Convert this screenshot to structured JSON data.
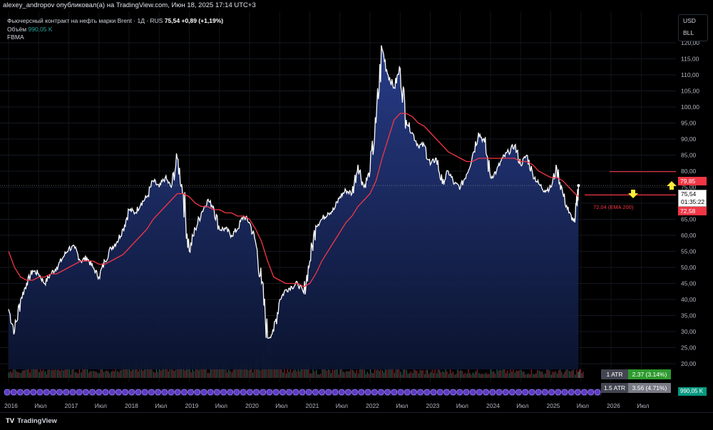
{
  "header": {
    "publish_line": "alexey_andropov опубликовал(а) на TradingView.com, Июн 18, 2025 17:14 UTC+3"
  },
  "legend": {
    "title": "Фьючерсный контракт на нефть марки Brent · 1Д · RUS",
    "price": "75,54",
    "change": "+0,89 (+1,19%)",
    "volume_label": "Объём",
    "volume_value": "990,05 K",
    "indicator": "FBMA"
  },
  "units": {
    "currency": "USD",
    "unit": "BLL"
  },
  "price_tags": {
    "upper_red": "79,85",
    "last_price": "75,54",
    "countdown": "01:35:22",
    "lower_red": "72,58",
    "volume": "990,05 K",
    "ema_label": "72,04 (EMA 200)"
  },
  "atr": [
    {
      "label": "1 ATR",
      "value": "2.37 (3.14%)"
    },
    {
      "label": "1.5 ATR",
      "value": "3.56 (4.71%)"
    }
  ],
  "footer": {
    "brand": "TradingView"
  },
  "colors": {
    "price_line": "#ffffff",
    "area_top": "#2a3f8f",
    "area_bottom": "#0b1430",
    "ema": "#f23645",
    "arrow": "#ffeb3b"
  },
  "chart_data": {
    "type": "area",
    "title": "Фьючерсный контракт на нефть марки Brent · 1Д · RUS",
    "xlabel": "",
    "ylabel": "",
    "ylim": [
      20,
      125
    ],
    "y_ticks": [
      "20,00",
      "25,00",
      "30,00",
      "35,00",
      "40,00",
      "45,00",
      "50,00",
      "55,00",
      "60,00",
      "65,00",
      "70,00",
      "75,00",
      "80,00",
      "85,00",
      "90,00",
      "95,00",
      "100,00",
      "105,00",
      "110,00",
      "115,00",
      "120,00"
    ],
    "x_ticks": [
      "2016",
      "Июл",
      "2017",
      "Июл",
      "2018",
      "Июл",
      "2019",
      "Июл",
      "2020",
      "Июл",
      "2021",
      "Июл",
      "2022",
      "Июл",
      "2023",
      "Июл",
      "2024",
      "Июл",
      "2025",
      "Июл",
      "2026",
      "Июл"
    ],
    "x": [
      2016.0,
      2016.1,
      2016.2,
      2016.3,
      2016.4,
      2016.5,
      2016.6,
      2016.7,
      2016.8,
      2016.9,
      2017.0,
      2017.1,
      2017.2,
      2017.3,
      2017.4,
      2017.5,
      2017.6,
      2017.7,
      2017.8,
      2017.9,
      2018.0,
      2018.1,
      2018.2,
      2018.3,
      2018.4,
      2018.5,
      2018.6,
      2018.7,
      2018.8,
      2018.9,
      2019.0,
      2019.1,
      2019.2,
      2019.3,
      2019.4,
      2019.5,
      2019.6,
      2019.7,
      2019.8,
      2019.9,
      2020.0,
      2020.1,
      2020.2,
      2020.3,
      2020.4,
      2020.5,
      2020.6,
      2020.7,
      2020.8,
      2020.9,
      2021.0,
      2021.1,
      2021.2,
      2021.3,
      2021.4,
      2021.5,
      2021.6,
      2021.7,
      2021.8,
      2021.9,
      2022.0,
      2022.1,
      2022.2,
      2022.3,
      2022.4,
      2022.5,
      2022.6,
      2022.7,
      2022.8,
      2022.9,
      2023.0,
      2023.1,
      2023.2,
      2023.3,
      2023.4,
      2023.5,
      2023.6,
      2023.7,
      2023.8,
      2023.9,
      2024.0,
      2024.1,
      2024.2,
      2024.3,
      2024.4,
      2024.5,
      2024.6,
      2024.7,
      2024.8,
      2024.9,
      2025.0,
      2025.1,
      2025.2,
      2025.3,
      2025.4,
      2025.46
    ],
    "series": [
      {
        "values": [
          37,
          30,
          40,
          45,
          49,
          48,
          45,
          48,
          50,
          53,
          56,
          56,
          52,
          53,
          50,
          47,
          52,
          56,
          58,
          62,
          68,
          67,
          70,
          72,
          77,
          75,
          78,
          75,
          84,
          73,
          55,
          62,
          67,
          71,
          69,
          62,
          62,
          60,
          62,
          66,
          64,
          58,
          45,
          28,
          30,
          40,
          43,
          44,
          45,
          42,
          52,
          63,
          65,
          67,
          68,
          72,
          74,
          73,
          82,
          75,
          80,
          95,
          118,
          110,
          106,
          112,
          96,
          92,
          88,
          88,
          82,
          84,
          76,
          80,
          76,
          75,
          79,
          85,
          92,
          89,
          78,
          80,
          84,
          86,
          88,
          82,
          85,
          79,
          76,
          74,
          75,
          81,
          73,
          67,
          64,
          75.54
        ]
      },
      {
        "values": [
          55,
          50,
          47,
          46,
          46,
          47,
          47,
          48,
          48,
          49,
          50,
          51,
          52,
          52,
          52,
          51,
          51,
          52,
          53,
          54,
          56,
          58,
          60,
          62,
          65,
          67,
          69,
          71,
          73,
          73,
          72,
          70,
          69,
          69,
          68,
          68,
          67,
          67,
          66,
          66,
          65,
          62,
          58,
          52,
          47,
          46,
          45,
          45,
          45,
          44,
          45,
          48,
          52,
          55,
          58,
          61,
          64,
          66,
          69,
          71,
          73,
          77,
          84,
          90,
          96,
          98,
          98,
          97,
          95,
          94,
          92,
          90,
          88,
          86,
          85,
          84,
          83,
          83,
          84,
          84,
          84,
          84,
          84,
          84,
          84,
          83,
          83,
          82,
          80,
          79,
          78,
          78,
          77,
          75,
          73,
          72.04
        ]
      }
    ],
    "volume": [
      0.3,
      0.4,
      0.3,
      0.4,
      0.5,
      0.4,
      0.3,
      0.4,
      0.5,
      0.4,
      0.3,
      0.4,
      0.5,
      0.4,
      0.3,
      0.4,
      0.3,
      0.4,
      0.5,
      0.6,
      0.4,
      0.5,
      0.6,
      0.5,
      0.4,
      0.5,
      0.6,
      0.5,
      0.7,
      0.6,
      0.5,
      0.6,
      0.5,
      0.4,
      0.5,
      0.6,
      0.4,
      0.5,
      0.4,
      0.5,
      0.5,
      0.7,
      0.9,
      1.0,
      0.8,
      0.5,
      0.4,
      0.3,
      0.4,
      0.5,
      0.4,
      0.3,
      0.4,
      0.3,
      0.3,
      0.4,
      0.3,
      0.4,
      0.4,
      0.3,
      0.4,
      0.5,
      0.5,
      0.4,
      0.4,
      0.3,
      0.3,
      0.3,
      0.3,
      0.3,
      0.3,
      0.3,
      0.3,
      0.3,
      0.3,
      0.3,
      0.3,
      0.3,
      0.3,
      0.3,
      0.3,
      0.3,
      0.3,
      0.3,
      0.3,
      0.3,
      0.3,
      0.3,
      0.3,
      0.3,
      0.3,
      0.3,
      0.3,
      0.3,
      0.3,
      0.3
    ],
    "levels": {
      "upper": 79.85,
      "last": 75.54,
      "lower": 72.58
    }
  }
}
